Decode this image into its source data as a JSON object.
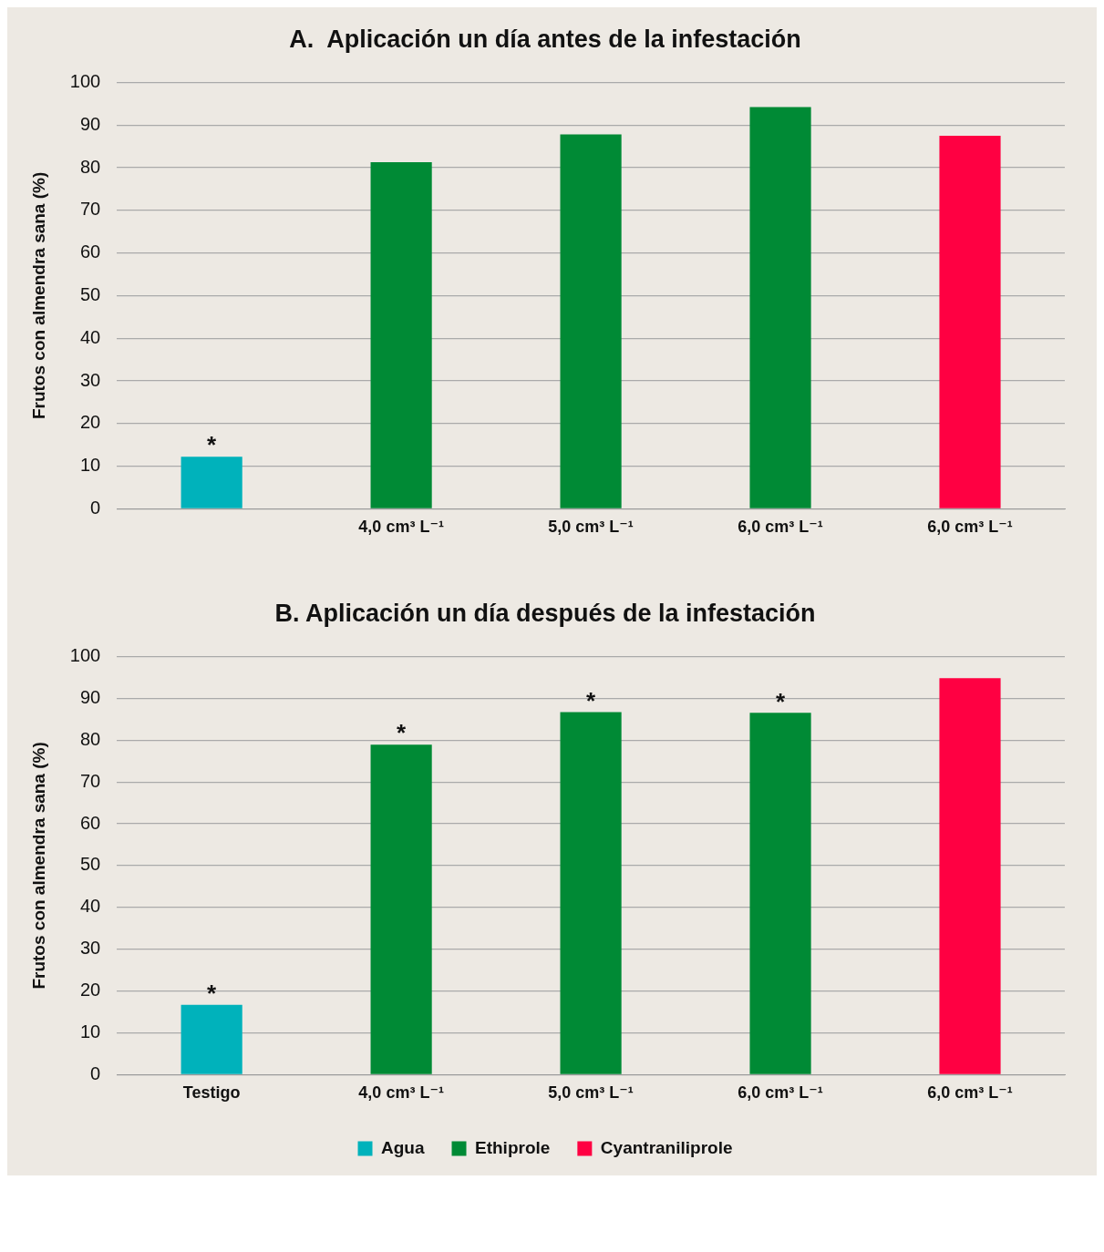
{
  "chart_data": [
    {
      "type": "bar",
      "title": "A.  Aplicación un día antes de la infestación",
      "ylabel": "Frutos con almendra sana (%)",
      "categories": [
        null,
        "4,0 cm³ L⁻¹",
        "5,0 cm³ L⁻¹",
        "6,0 cm³ L⁻¹",
        "6,0 cm³ L⁻¹"
      ],
      "series": [
        {
          "color": "#00b2bb",
          "values": [
            12.2,
            null,
            null,
            null,
            null
          ],
          "value_labels": [
            "*",
            null,
            null,
            null,
            null
          ]
        },
        {
          "color": "#008a35",
          "values": [
            null,
            81.3,
            87.8,
            94.2,
            null
          ]
        },
        {
          "color": "#ff0042",
          "values": [
            null,
            null,
            null,
            null,
            87.5
          ]
        }
      ],
      "ylim": [
        0,
        100
      ],
      "yticks": [
        0,
        10,
        20,
        30,
        40,
        50,
        60,
        70,
        80,
        90,
        100
      ],
      "grid": "y",
      "legend": false
    },
    {
      "type": "bar",
      "title": "B. Aplicación un día después de la infestación",
      "ylabel": "Frutos con almendra sana (%)",
      "categories": [
        "Testigo",
        "4,0 cm³ L⁻¹",
        "5,0 cm³ L⁻¹",
        "6,0 cm³ L⁻¹",
        "6,0 cm³ L⁻¹"
      ],
      "series": [
        {
          "name": "Agua",
          "color": "#00b2bb",
          "values": [
            16.7,
            null,
            null,
            null,
            null
          ],
          "value_labels": [
            "*",
            null,
            null,
            null,
            null
          ]
        },
        {
          "name": "Ethiprole",
          "color": "#008a35",
          "values": [
            null,
            78.9,
            86.7,
            86.5,
            null
          ],
          "value_labels": [
            null,
            "*",
            "*",
            "*",
            null
          ]
        },
        {
          "name": "Cyantraniliprole",
          "color": "#ff0042",
          "values": [
            null,
            null,
            null,
            null,
            94.8
          ]
        }
      ],
      "ylim": [
        0,
        100
      ],
      "yticks": [
        0,
        10,
        20,
        30,
        40,
        50,
        60,
        70,
        80,
        90,
        100
      ],
      "grid": "y",
      "legend": "bottom"
    }
  ]
}
